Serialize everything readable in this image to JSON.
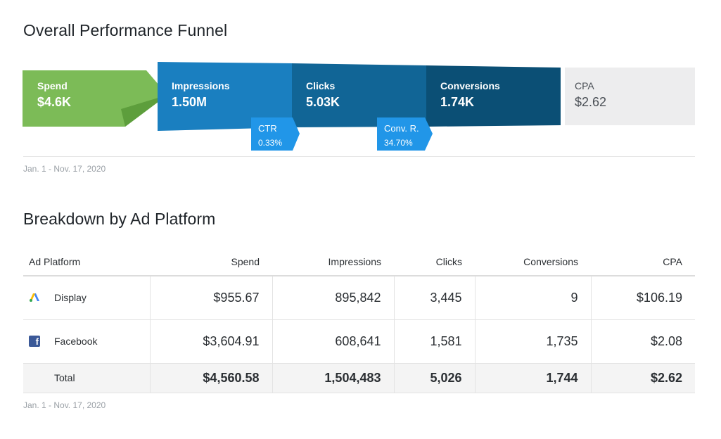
{
  "funnel": {
    "title": "Overall Performance Funnel",
    "stages": {
      "spend": {
        "label": "Spend",
        "value": "$4.6K",
        "color": "#7cbb57"
      },
      "impressions": {
        "label": "Impressions",
        "value": "1.50M",
        "color": "#1a7fc0"
      },
      "clicks": {
        "label": "Clicks",
        "value": "5.03K",
        "color": "#116596"
      },
      "conversions": {
        "label": "Conversions",
        "value": "1.74K",
        "color": "#0b4f75"
      },
      "cpa": {
        "label": "CPA",
        "value": "$2.62",
        "color": "#ededee"
      }
    },
    "rates": {
      "ctr": {
        "label": "CTR",
        "value": "0.33%",
        "color": "#2196e8"
      },
      "conv": {
        "label": "Conv. R.",
        "value": "34.70%",
        "color": "#2196e8"
      }
    },
    "date_range": "Jan. 1 - Nov. 17, 2020"
  },
  "breakdown": {
    "title": "Breakdown by Ad Platform",
    "columns": [
      "Ad Platform",
      "Spend",
      "Impressions",
      "Clicks",
      "Conversions",
      "CPA"
    ],
    "rows": [
      {
        "platform": "Display",
        "icon": "google-ads-icon",
        "spend": "$955.67",
        "impressions": "895,842",
        "clicks": "3,445",
        "conversions": "9",
        "cpa": "$106.19"
      },
      {
        "platform": "Facebook",
        "icon": "facebook-icon",
        "spend": "$3,604.91",
        "impressions": "608,641",
        "clicks": "1,581",
        "conversions": "1,735",
        "cpa": "$2.08"
      }
    ],
    "total": {
      "label": "Total",
      "spend": "$4,560.58",
      "impressions": "1,504,483",
      "clicks": "5,026",
      "conversions": "1,744",
      "cpa": "$2.62"
    },
    "date_range": "Jan. 1 - Nov. 17, 2020"
  }
}
